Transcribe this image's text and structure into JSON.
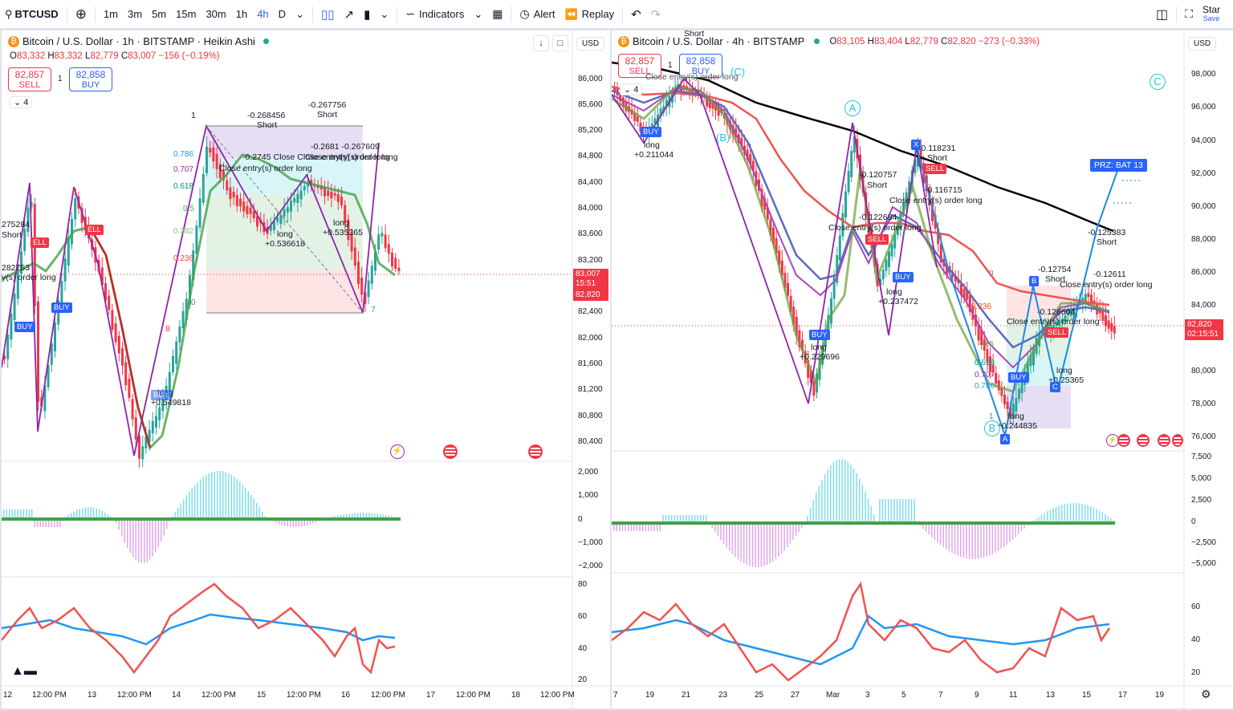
{
  "toolbar": {
    "symbol": "BTCUSD",
    "intervals": [
      "1m",
      "3m",
      "5m",
      "15m",
      "30m",
      "1h",
      "4h",
      "D"
    ],
    "active_interval": "4h",
    "indicators_label": "Indicators",
    "alert_label": "Alert",
    "replay_label": "Replay",
    "star_label": "Star",
    "save_label": "Save"
  },
  "left_chart": {
    "legend": "Bitcoin / U.S. Dollar · 1h · BITSTAMP · Heikin Ashi",
    "ohlc": {
      "o_label": "O",
      "o": "83,332",
      "h_label": "H",
      "h": "83,332",
      "l_label": "L",
      "l": "82,779",
      "c_label": "C",
      "c": "83,007",
      "change": "−156 (−0.19%)"
    },
    "sell": {
      "price": "82,857",
      "label": "SELL"
    },
    "buy": {
      "price": "82,858",
      "label": "BUY"
    },
    "spread": "1",
    "collapse_count": "4",
    "currency": "USD",
    "price_axis": [
      "86,000",
      "85,600",
      "85,200",
      "84,800",
      "84,400",
      "84,000",
      "83,600",
      "83,200",
      "82,400",
      "82,000",
      "81,600",
      "81,200",
      "80,800",
      "80,400"
    ],
    "price_tag_current": "83,007",
    "price_tag_timer": "15:51",
    "price_tag_last": "82,820",
    "macd_axis": [
      "2,000",
      "1,000",
      "0",
      "−1,000",
      "−2,000"
    ],
    "rsi_axis": [
      "80",
      "60",
      "40",
      "20"
    ],
    "time_axis": [
      "12",
      "12:00 PM",
      "13",
      "12:00 PM",
      "14",
      "12:00 PM",
      "15",
      "12:00 PM",
      "16",
      "12:00 PM",
      "17",
      "12:00 PM",
      "18",
      "12:00 PM"
    ],
    "fib_levels": [
      "0.786",
      "0.707",
      "0.618",
      "0.5",
      "0.382",
      "0.236",
      "0"
    ],
    "annotations": {
      "a1": "-0.268456",
      "a1b": "Short",
      "a2": "-0.267756",
      "a2b": "Short",
      "a3": "-0.2745 Close Close entry(s) order long",
      "a4": "-0.2681 -0.267609",
      "a5": "Close entry(s) order long",
      "a6": "long",
      "a7": "+0.536618",
      "a8": "long",
      "a9": "+0.535365",
      "a10": "long",
      "a11": "+0.549818",
      "a12": "275284",
      "a13": "Short",
      "a14": "282753",
      "a15": "y(s) order long",
      "a16": "1",
      "a17": "7",
      "a18": "8",
      "a19": "8"
    },
    "signals": {
      "sell1": "ELL",
      "sell2": "ELL",
      "buy1": "BUY",
      "buy2": "BUY",
      "buy3": "BUY"
    }
  },
  "right_chart": {
    "legend": "Bitcoin / U.S. Dollar · 4h · BITSTAMP",
    "ohlc": {
      "o_label": "O",
      "o": "83,105",
      "h_label": "H",
      "h": "83,404",
      "l_label": "L",
      "l": "82,779",
      "c_label": "C",
      "c": "82,820",
      "change": "−273 (−0.33%)"
    },
    "sell": {
      "price": "82,857",
      "label": "SELL"
    },
    "buy": {
      "price": "82,858",
      "label": "BUY"
    },
    "spread": "1",
    "collapse_count": "4",
    "currency": "USD",
    "price_axis": [
      "98,000",
      "96,000",
      "94,000",
      "92,000",
      "90,000",
      "88,000",
      "86,000",
      "84,000",
      "80,000",
      "78,000",
      "76,000"
    ],
    "price_tag_last": "82,820",
    "price_tag_timer": "02:15:51",
    "macd_axis": [
      "7,500",
      "5,000",
      "2,500",
      "0",
      "−2,500",
      "−5,000"
    ],
    "rsi_axis": [
      "60",
      "40",
      "20"
    ],
    "time_axis": [
      "7",
      "19",
      "21",
      "23",
      "25",
      "27",
      "Mar",
      "3",
      "5",
      "7",
      "9",
      "11",
      "13",
      "15",
      "17",
      "19"
    ],
    "annotations": {
      "r1": "Short",
      "r2": "Close entry(s) order long",
      "r3": "long",
      "r4": "+0.211044",
      "r5": "-0.120757",
      "r6": "Short",
      "r7": "-0.118231",
      "r8": "Short",
      "r9": "-0.116715",
      "r10": "Close entry(s) order long",
      "r11": "-0.122684",
      "r12": "Close entry(s) order long",
      "r13": "long",
      "r14": "+0.237472",
      "r15": "long",
      "r16": "+0.229696",
      "r17": "-0.125383",
      "r18": "Short",
      "r19": "-0.12754",
      "r20": "Short",
      "r21": "-0.12611",
      "r22": "Close entry(s) order long",
      "r23": "-0.126604",
      "r24": "Close entry(s) order long",
      "r25": "long",
      "r26": "+0.25365",
      "r27": "long",
      "r28": "+0.244835",
      "prz": "PRZ: BAT 13",
      "wave_a": "A",
      "wave_b": "(B)",
      "wave_c": "(C)",
      "wave_c2": "C",
      "pt_x": "X",
      "pt_b": "B",
      "pt_c": "C",
      "pt_b2": "B",
      "pt_a": "A",
      "fib_0": "0",
      "fib_236": "0.236",
      "fib_5": "0.5",
      "fib_618": "0.618",
      "fib_707": "0.707",
      "fib_786": "0.786",
      "fib_1": "1"
    },
    "signals": {
      "buy1": "BUY",
      "buy2": "BUY",
      "buy3": "BUY",
      "buy4": "BUY",
      "sell1": "SELL",
      "sell2": "SELL",
      "sell3": "SELL"
    }
  },
  "colors": {
    "bull": "#26a69a",
    "bear": "#f23645",
    "accent": "#2962ff",
    "purple": "#9c27b0",
    "ma_black": "#000000",
    "ma_red": "#f44336",
    "ma_blue": "#5c6bc0",
    "teal": "#26c6da"
  }
}
